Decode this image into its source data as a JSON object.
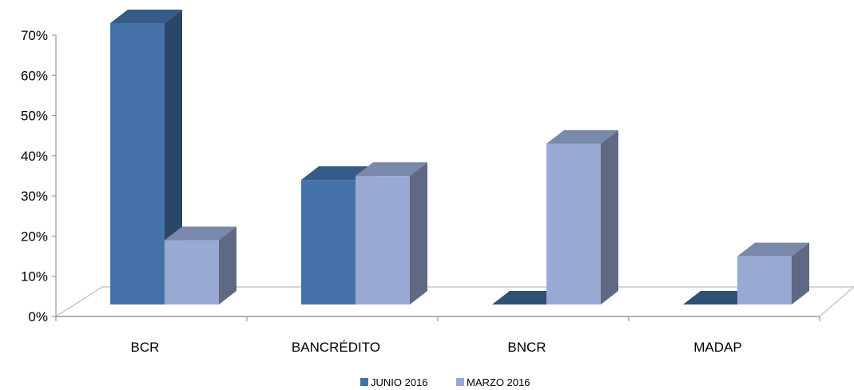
{
  "chart_data": {
    "type": "bar",
    "categories": [
      "BCR",
      "BANCRÉDITO",
      "BNCR",
      "MADAP"
    ],
    "series": [
      {
        "name": "JUNIO 2016",
        "values": [
          70,
          31,
          0,
          0
        ],
        "color": "#4472A8"
      },
      {
        "name": "MARZO 2016",
        "values": [
          16,
          32,
          40,
          12
        ],
        "color": "#98AAD4"
      }
    ],
    "ylim": [
      0,
      70
    ],
    "yticks": [
      "0%",
      "10%",
      "20%",
      "30%",
      "40%",
      "50%",
      "60%",
      "70%"
    ],
    "y_unit": "%",
    "three_d": true,
    "grid": false,
    "legend_position": "bottom",
    "title": "",
    "xlabel": "",
    "ylabel": ""
  }
}
